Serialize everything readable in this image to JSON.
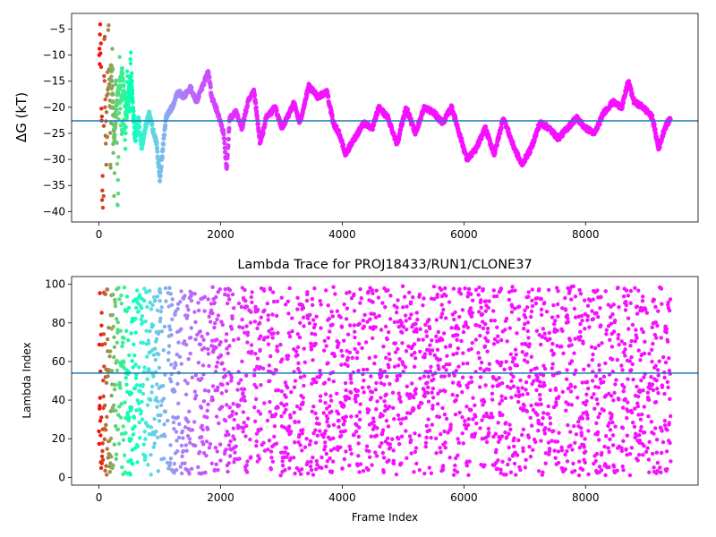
{
  "chart_data": [
    {
      "type": "scatter",
      "title": "",
      "xlabel": "",
      "ylabel": "ΔG (kT)",
      "xlim": [
        -450,
        9850
      ],
      "ylim": [
        -42,
        -2
      ],
      "xticks": [
        0,
        2000,
        4000,
        6000,
        8000
      ],
      "xtick_labels": [
        "0",
        "2000",
        "4000",
        "6000",
        "8000"
      ],
      "yticks": [
        -5,
        -10,
        -15,
        -20,
        -25,
        -30,
        -35,
        -40
      ],
      "ytick_labels": [
        "−5",
        "−10",
        "−15",
        "−20",
        "−25",
        "−30",
        "−35",
        "−40"
      ],
      "hline": -22.6,
      "hline_color": "#1f77b4",
      "colormap": "rainbow",
      "frames": 9400,
      "grid": false,
      "trace_anchors": {
        "x": [
          0,
          80,
          150,
          200,
          250,
          300,
          380,
          450,
          520,
          560,
          600,
          650,
          700,
          760,
          830,
          880,
          950,
          1000,
          1050,
          1100,
          1200,
          1300,
          1400,
          1500,
          1600,
          1700,
          1800,
          1850,
          1950,
          2050,
          2100,
          2150,
          2250,
          2350,
          2450,
          2550,
          2650,
          2750,
          2900,
          3000,
          3100,
          3200,
          3300,
          3450,
          3600,
          3750,
          3850,
          3950,
          4050,
          4200,
          4350,
          4500,
          4600,
          4750,
          4900,
          5050,
          5200,
          5350,
          5500,
          5650,
          5800,
          5950,
          6050,
          6200,
          6350,
          6500,
          6650,
          6800,
          6950,
          7100,
          7250,
          7400,
          7550,
          7700,
          7850,
          8000,
          8150,
          8300,
          8450,
          8600,
          8700,
          8800,
          8950,
          9100,
          9200,
          9300,
          9400
        ],
        "y": [
          -20,
          -14,
          -28,
          -12,
          -26,
          -18,
          -13,
          -22,
          -14,
          -20,
          -26,
          -22,
          -28,
          -24,
          -21,
          -24,
          -27,
          -34,
          -28,
          -22,
          -20,
          -17,
          -18,
          -16,
          -19,
          -16,
          -13,
          -18,
          -21,
          -25,
          -32,
          -22,
          -21,
          -24,
          -19,
          -17,
          -27,
          -22,
          -20,
          -24,
          -22,
          -19,
          -23,
          -16,
          -18,
          -17,
          -23,
          -25,
          -29,
          -26,
          -23,
          -24,
          -20,
          -22,
          -27,
          -20,
          -25,
          -20,
          -21,
          -23,
          -20,
          -26,
          -30,
          -28,
          -24,
          -29,
          -22,
          -27,
          -31,
          -28,
          -23,
          -24,
          -26,
          -24,
          -22,
          -24,
          -25,
          -21,
          -19,
          -20,
          -15,
          -19,
          -20,
          -22,
          -28,
          -24,
          -22
        ]
      },
      "scatter_anchors": {
        "x": [
          10,
          30,
          50,
          70,
          90,
          110,
          130,
          160,
          190,
          220,
          250,
          280,
          310,
          340,
          370,
          400,
          430,
          460,
          490,
          520,
          550,
          580
        ],
        "y": [
          -10,
          -3,
          -30,
          -41,
          -6,
          -34,
          -22,
          -8,
          -27,
          -12,
          -33,
          -16,
          -38,
          -15,
          -24,
          -19,
          -29,
          -13,
          -22,
          -11,
          -18,
          -25
        ]
      }
    },
    {
      "type": "scatter",
      "title": "Lambda Trace for PROJ18433/RUN1/CLONE37",
      "xlabel": "Frame Index",
      "ylabel": "Lambda Index",
      "xlim": [
        -450,
        9850
      ],
      "ylim": [
        -4,
        104
      ],
      "xticks": [
        0,
        2000,
        4000,
        6000,
        8000
      ],
      "xtick_labels": [
        "0",
        "2000",
        "4000",
        "6000",
        "8000"
      ],
      "yticks": [
        0,
        20,
        40,
        60,
        80,
        100
      ],
      "ytick_labels": [
        "0",
        "20",
        "40",
        "60",
        "80",
        "100"
      ],
      "hline": 54,
      "hline_color": "#1f77b4",
      "colormap": "rainbow",
      "frames": 9400,
      "value_range": [
        1,
        99
      ],
      "grid": false
    }
  ]
}
